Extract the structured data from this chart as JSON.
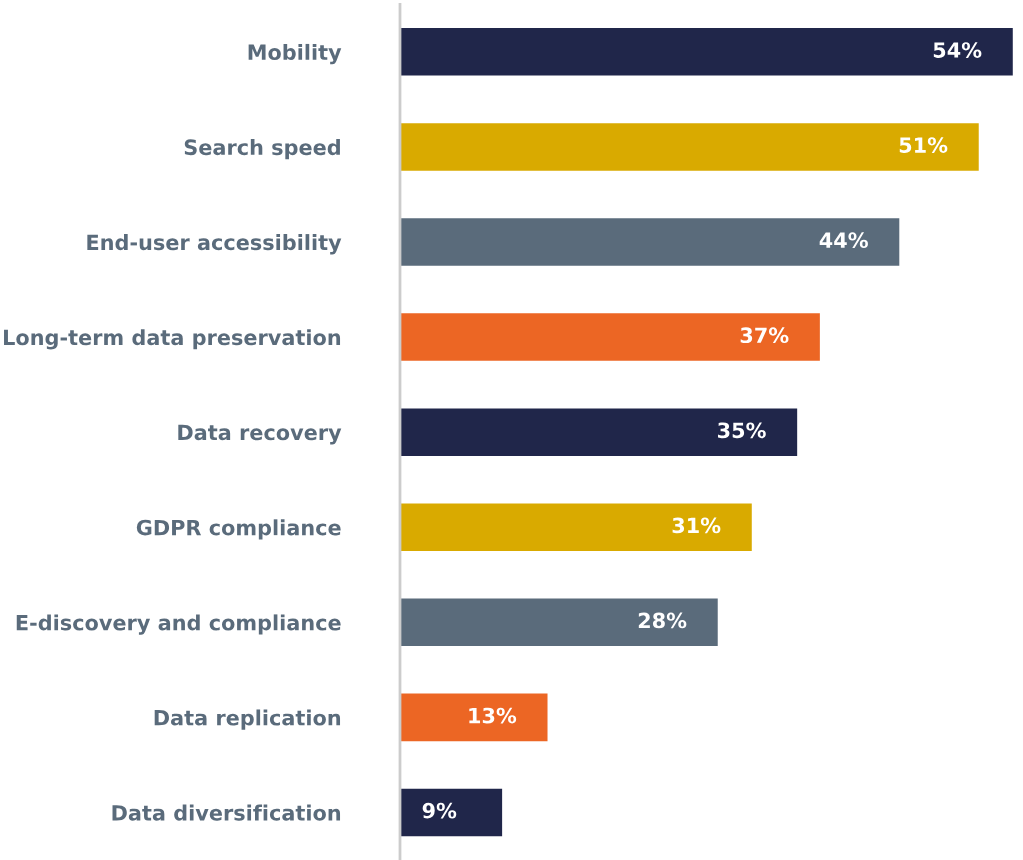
{
  "chart_data": {
    "type": "bar",
    "orientation": "horizontal",
    "categories": [
      "Mobility",
      "Search speed",
      "End-user accessibility",
      "Long-term data preservation",
      "Data recovery",
      "GDPR compliance",
      "E-discovery and compliance",
      "Data replication",
      "Data diversification"
    ],
    "values": [
      54,
      51,
      44,
      37,
      35,
      31,
      28,
      13,
      9
    ],
    "value_labels": [
      "54%",
      "51%",
      "44%",
      "37%",
      "35%",
      "31%",
      "28%",
      "13%",
      "9%"
    ],
    "colors": [
      "#20264a",
      "#d9aa00",
      "#5a6b7b",
      "#ec6624",
      "#20264a",
      "#d9aa00",
      "#5a6b7b",
      "#ec6624",
      "#20264a"
    ],
    "grid": false,
    "legend": false
  }
}
